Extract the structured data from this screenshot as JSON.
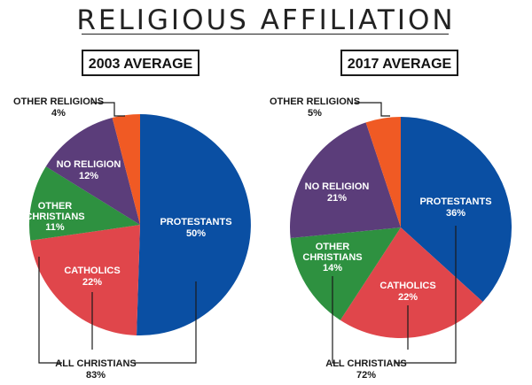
{
  "title": "RELIGIOUS AFFILIATION",
  "colors": {
    "protestants": "#0a4fa3",
    "catholics": "#e0464b",
    "other_christians": "#2e9140",
    "no_religion": "#5b3d7a",
    "other_religions": "#f05a24"
  },
  "chart_data": [
    {
      "type": "pie",
      "title": "2003 AVERAGE",
      "slices": [
        {
          "name": "PROTESTANTS",
          "value": 50,
          "label": "50%"
        },
        {
          "name": "CATHOLICS",
          "value": 22,
          "label": "22%"
        },
        {
          "name": "OTHER CHRISTIANS",
          "value": 11,
          "label": "11%"
        },
        {
          "name": "NO RELIGION",
          "value": 12,
          "label": "12%"
        },
        {
          "name": "OTHER RELIGIONS",
          "value": 4,
          "label": "4%"
        }
      ],
      "group": {
        "name": "ALL CHRISTIANS",
        "value": 83,
        "label": "83%"
      }
    },
    {
      "type": "pie",
      "title": "2017 AVERAGE",
      "slices": [
        {
          "name": "PROTESTANTS",
          "value": 36,
          "label": "36%"
        },
        {
          "name": "CATHOLICS",
          "value": 22,
          "label": "22%"
        },
        {
          "name": "OTHER CHRISTIANS",
          "value": 14,
          "label": "14%"
        },
        {
          "name": "NO RELIGION",
          "value": 21,
          "label": "21%"
        },
        {
          "name": "OTHER RELIGIONS",
          "value": 5,
          "label": "5%"
        }
      ],
      "group": {
        "name": "ALL CHRISTIANS",
        "value": 72,
        "label": "72%"
      }
    }
  ]
}
